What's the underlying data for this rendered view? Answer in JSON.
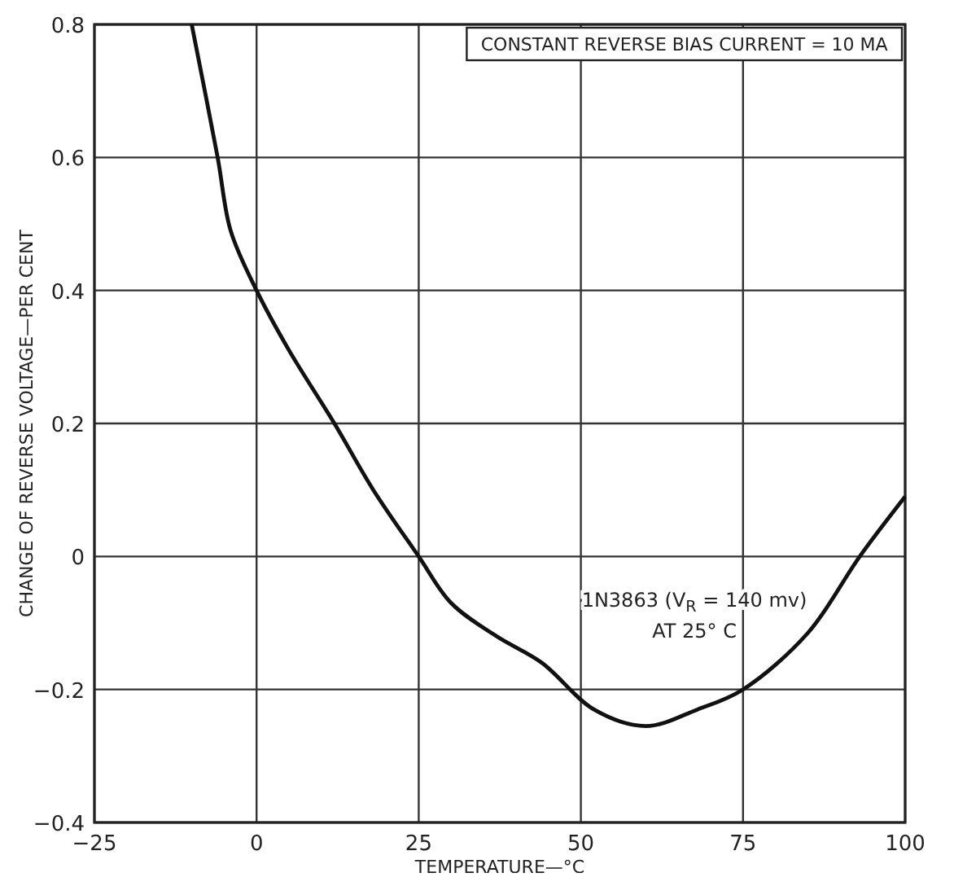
{
  "chart_data": {
    "type": "line",
    "xlabel": "TEMPERATURE—°C",
    "ylabel": "CHANGE OF REVERSE VOLTAGE—PER CENT",
    "x": [
      -10,
      -6,
      -4,
      0,
      5,
      12,
      18,
      25,
      30,
      37,
      44,
      52,
      60,
      68,
      75,
      85,
      93,
      100
    ],
    "series": [
      {
        "color": "#111111",
        "values": [
          0.8,
          0.6,
          0.49,
          0.4,
          0.31,
          0.2,
          0.1,
          0,
          -0.07,
          -0.12,
          -0.16,
          -0.23,
          -0.255,
          -0.23,
          -0.2,
          -0.115,
          0,
          0.09
        ]
      }
    ],
    "xlim": [
      -25,
      100
    ],
    "xticks": [
      {
        "value": -25,
        "label": "−25"
      },
      0,
      25,
      50,
      75,
      100
    ],
    "ylim": [
      -0.4,
      0.8
    ],
    "yticks": [
      {
        "value": -0.4,
        "label": "−0.4"
      },
      {
        "value": -0.2,
        "label": "−0.2"
      },
      0,
      0.2,
      0.4,
      0.6,
      0.8
    ],
    "grid": true,
    "marker": "none",
    "line_style": "solid",
    "annotations": [
      "CONSTANT REVERSE BIAS CURRENT = 10 MA",
      "1N3863 (V$_{R}$ = 140 mv)",
      "AT 25° C"
    ]
  }
}
